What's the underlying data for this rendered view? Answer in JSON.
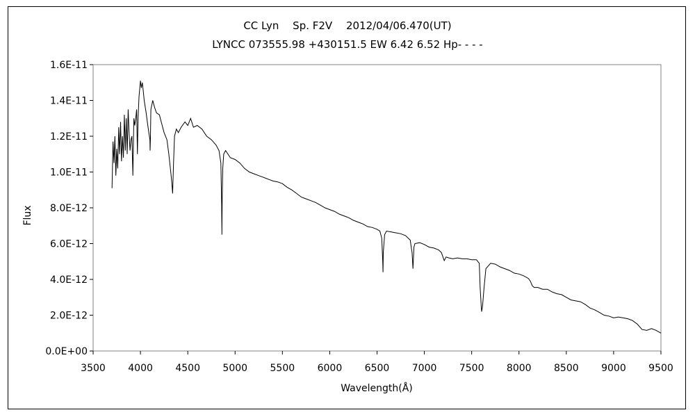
{
  "chart_data": {
    "type": "line",
    "title": "CC Lyn　 Sp. F2V　 2012/04/06.470(UT)",
    "subtitle": "LYNCC 073555.98 +430151.5 EW 6.42 6.52 Hp- - - -",
    "xlabel": "Wavelength(Å)",
    "ylabel": "Flux",
    "xlim": [
      3500,
      9500
    ],
    "ylim": [
      0,
      1.6e-11
    ],
    "xticks": [
      "3500",
      "4000",
      "4500",
      "5000",
      "5500",
      "6000",
      "6500",
      "7000",
      "7500",
      "8000",
      "8500",
      "9000",
      "9500"
    ],
    "yticks": [
      "0.0E+00",
      "2.0E-12",
      "4.0E-12",
      "6.0E-12",
      "8.0E-12",
      "1.0E-11",
      "1.2E-11",
      "1.4E-11",
      "1.6E-11"
    ],
    "grid": false,
    "legend": "none",
    "line_color": "#000000",
    "series": [
      {
        "x": [
          3700,
          3710,
          3720,
          3730,
          3740,
          3750,
          3760,
          3770,
          3780,
          3790,
          3800,
          3810,
          3820,
          3830,
          3840,
          3850,
          3860,
          3870,
          3880,
          3890,
          3900,
          3910,
          3920,
          3930,
          3940,
          3950,
          3960,
          3968,
          3975,
          3985,
          4000,
          4010,
          4020,
          4030,
          4040,
          4060,
          4080,
          4100,
          4102,
          4105,
          4110,
          4130,
          4150,
          4170,
          4200,
          4220,
          4250,
          4280,
          4300,
          4320,
          4330,
          4340,
          4350,
          4360,
          4380,
          4400,
          4430,
          4470,
          4500,
          4530,
          4560,
          4600,
          4650,
          4700,
          4750,
          4800,
          4830,
          4850,
          4858,
          4861,
          4864,
          4870,
          4880,
          4900,
          4950,
          5000,
          5050,
          5100,
          5150,
          5200,
          5250,
          5300,
          5350,
          5400,
          5450,
          5500,
          5550,
          5600,
          5650,
          5700,
          5750,
          5800,
          5850,
          5900,
          5950,
          6000,
          6050,
          6100,
          6150,
          6200,
          6250,
          6300,
          6350,
          6400,
          6450,
          6500,
          6530,
          6550,
          6560,
          6563,
          6566,
          6580,
          6600,
          6650,
          6700,
          6750,
          6800,
          6850,
          6870,
          6880,
          6890,
          6900,
          6950,
          7000,
          7050,
          7100,
          7150,
          7180,
          7200,
          7210,
          7230,
          7260,
          7300,
          7350,
          7400,
          7450,
          7500,
          7550,
          7580,
          7590,
          7600,
          7605,
          7615,
          7630,
          7650,
          7700,
          7750,
          7800,
          7850,
          7900,
          7950,
          8000,
          8050,
          8100,
          8120,
          8140,
          8160,
          8200,
          8250,
          8300,
          8350,
          8400,
          8450,
          8500,
          8550,
          8600,
          8650,
          8700,
          8750,
          8800,
          8850,
          8900,
          8950,
          9000,
          9050,
          9100,
          9150,
          9200,
          9250,
          9300,
          9350,
          9400,
          9450,
          9500
        ],
        "y": [
          9.1e-12,
          1.17e-11,
          1.05e-11,
          1.2e-11,
          9.8e-12,
          1.13e-11,
          1.02e-11,
          1.25e-11,
          1.1e-11,
          1.28e-11,
          1.06e-11,
          1.2e-11,
          1.08e-11,
          1.32e-11,
          1.12e-11,
          1.3e-11,
          1.1e-11,
          1.35e-11,
          1.22e-11,
          1.12e-11,
          1.18e-11,
          1.2e-11,
          9.8e-12,
          1.3e-11,
          1.26e-11,
          1.3e-11,
          1.35e-11,
          1.1e-11,
          1.3e-11,
          1.42e-11,
          1.51e-11,
          1.47e-11,
          1.5e-11,
          1.45e-11,
          1.4e-11,
          1.33e-11,
          1.25e-11,
          1.18e-11,
          1.12e-11,
          1.18e-11,
          1.35e-11,
          1.4e-11,
          1.36e-11,
          1.33e-11,
          1.32e-11,
          1.28e-11,
          1.22e-11,
          1.18e-11,
          1.1e-11,
          1e-11,
          9.5e-12,
          8.8e-12,
          1.05e-11,
          1.2e-11,
          1.24e-11,
          1.22e-11,
          1.25e-11,
          1.28e-11,
          1.26e-11,
          1.3e-11,
          1.25e-11,
          1.26e-11,
          1.24e-11,
          1.2e-11,
          1.18e-11,
          1.15e-11,
          1.12e-11,
          1.05e-11,
          8.2e-12,
          6.5e-12,
          8.5e-12,
          1.02e-11,
          1.1e-11,
          1.12e-11,
          1.08e-11,
          1.07e-11,
          1.05e-11,
          1.02e-11,
          1e-11,
          9.9e-12,
          9.8e-12,
          9.7e-12,
          9.6e-12,
          9.5e-12,
          9.45e-12,
          9.35e-12,
          9.15e-12,
          9e-12,
          8.8e-12,
          8.6e-12,
          8.5e-12,
          8.4e-12,
          8.3e-12,
          8.15e-12,
          8e-12,
          7.9e-12,
          7.8e-12,
          7.65e-12,
          7.55e-12,
          7.45e-12,
          7.3e-12,
          7.2e-12,
          7.1e-12,
          6.95e-12,
          6.9e-12,
          6.8e-12,
          6.7e-12,
          6.3e-12,
          5e-12,
          4.4e-12,
          5.5e-12,
          6.5e-12,
          6.7e-12,
          6.65e-12,
          6.6e-12,
          6.55e-12,
          6.45e-12,
          6.2e-12,
          5.5e-12,
          4.6e-12,
          5.8e-12,
          6e-12,
          6.05e-12,
          5.95e-12,
          5.8e-12,
          5.75e-12,
          5.65e-12,
          5.5e-12,
          5.2e-12,
          5.05e-12,
          5.25e-12,
          5.2e-12,
          5.15e-12,
          5.2e-12,
          5.15e-12,
          5.15e-12,
          5.1e-12,
          5.1e-12,
          4.9e-12,
          3.5e-12,
          2.6e-12,
          2.2e-12,
          2.5e-12,
          3.5e-12,
          4.6e-12,
          4.9e-12,
          4.85e-12,
          4.7e-12,
          4.6e-12,
          4.5e-12,
          4.35e-12,
          4.3e-12,
          4.2e-12,
          4.05e-12,
          3.9e-12,
          3.65e-12,
          3.55e-12,
          3.55e-12,
          3.45e-12,
          3.45e-12,
          3.3e-12,
          3.2e-12,
          3.15e-12,
          3e-12,
          2.85e-12,
          2.8e-12,
          2.75e-12,
          2.6e-12,
          2.4e-12,
          2.3e-12,
          2.15e-12,
          2e-12,
          1.95e-12,
          1.85e-12,
          1.9e-12,
          1.85e-12,
          1.8e-12,
          1.7e-12,
          1.5e-12,
          1.2e-12,
          1.15e-12,
          1.25e-12,
          1.15e-12,
          1e-12
        ]
      }
    ]
  }
}
